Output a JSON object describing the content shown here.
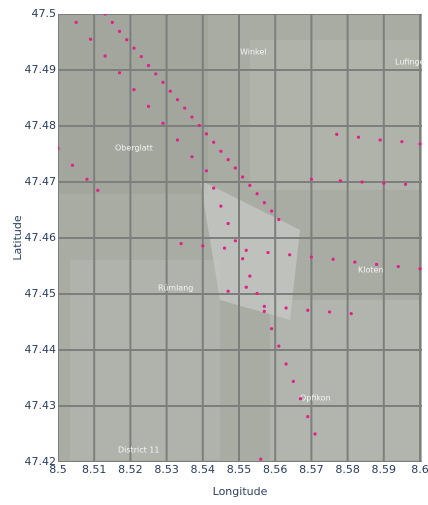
{
  "chart_data": {
    "type": "scatter",
    "x_label": "Longitude",
    "y_label": "Latitude",
    "xlim": [
      8.5,
      8.6
    ],
    "ylim": [
      47.42,
      47.5
    ],
    "xticks": [
      8.5,
      8.51,
      8.52,
      8.53,
      8.54,
      8.55,
      8.56,
      8.57,
      8.58,
      8.59,
      8.6
    ],
    "yticks": [
      47.42,
      47.43,
      47.44,
      47.45,
      47.46,
      47.47,
      47.48,
      47.49,
      47.5
    ],
    "grid": true,
    "map_labels": [
      "Winkel",
      "Oberglatt",
      "Rümlang",
      "Kloten",
      "Opfikon",
      "District 11",
      "Lufinge"
    ],
    "series": [
      {
        "color": "#e0218a",
        "x": [
          8.513,
          8.515,
          8.517,
          8.519,
          8.521,
          8.523,
          8.525,
          8.527,
          8.529,
          8.531,
          8.533,
          8.535,
          8.537,
          8.539,
          8.541,
          8.543,
          8.545,
          8.547,
          8.549,
          8.551,
          8.553,
          8.555,
          8.557,
          8.559,
          8.561,
          8.541,
          8.543,
          8.545,
          8.547,
          8.549,
          8.551,
          8.553,
          8.555,
          8.557,
          8.559,
          8.561,
          8.563,
          8.565,
          8.567,
          8.569,
          8.571,
          8.534,
          8.54,
          8.546,
          8.552,
          8.558,
          8.564,
          8.57,
          8.576,
          8.582,
          8.588,
          8.594,
          8.6,
          8.505,
          8.509,
          8.513,
          8.517,
          8.521,
          8.525,
          8.529,
          8.533,
          8.537,
          8.5,
          8.504,
          8.508,
          8.511,
          8.557,
          8.563,
          8.569,
          8.575,
          8.581,
          8.577,
          8.583,
          8.589,
          8.595,
          8.6,
          8.578,
          8.584,
          8.59,
          8.596,
          8.57,
          8.547,
          8.552,
          8.556
        ],
        "y": [
          47.5,
          47.4985,
          47.4969,
          47.4954,
          47.4939,
          47.4924,
          47.4908,
          47.4893,
          47.4878,
          47.4862,
          47.4847,
          47.4832,
          47.4816,
          47.4801,
          47.4786,
          47.4771,
          47.4755,
          47.474,
          47.4725,
          47.4709,
          47.4694,
          47.4679,
          47.4663,
          47.4648,
          47.4633,
          47.472,
          47.4689,
          47.4657,
          47.4626,
          47.4595,
          47.4563,
          47.4532,
          47.4501,
          47.4469,
          47.4438,
          47.4407,
          47.4375,
          47.4344,
          47.4313,
          47.4281,
          47.425,
          47.459,
          47.4586,
          47.4582,
          47.4578,
          47.4574,
          47.457,
          47.4566,
          47.4562,
          47.4557,
          47.4553,
          47.4549,
          47.4545,
          47.4985,
          47.4955,
          47.4925,
          47.4895,
          47.4865,
          47.4835,
          47.4805,
          47.4775,
          47.4745,
          47.476,
          47.473,
          47.4705,
          47.4685,
          47.4478,
          47.4475,
          47.4471,
          47.4468,
          47.4465,
          47.4785,
          47.478,
          47.4775,
          47.4772,
          47.4768,
          47.4702,
          47.47,
          47.4698,
          47.4696,
          47.4705,
          47.4505,
          47.4512,
          47.4205
        ]
      }
    ]
  }
}
